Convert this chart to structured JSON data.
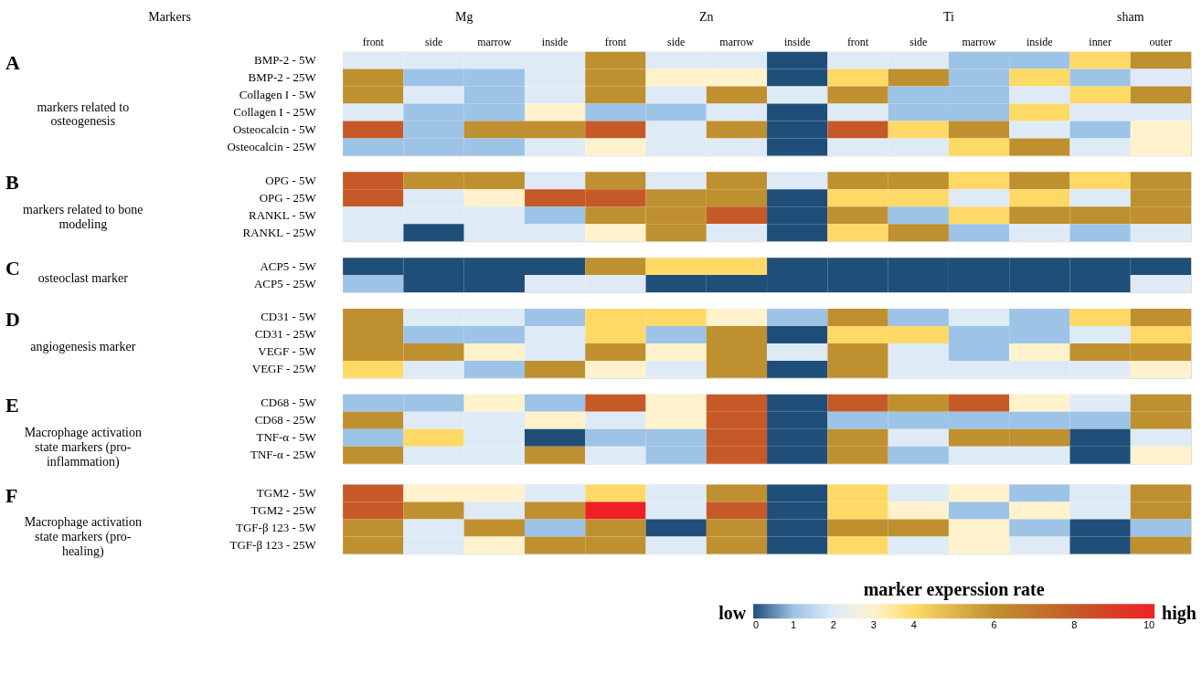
{
  "chart_data": {
    "type": "heatmap",
    "annotations": [
      "Markers",
      "Mg",
      "Zn",
      "Ti",
      "sham",
      "A",
      "markers related to osteogenesis",
      "B",
      "markers related to bone modeling",
      "C",
      "osteoclast marker",
      "D",
      "angiogenesis marker",
      "E",
      "Macrophage activation state markers (pro-inflammation)",
      "F",
      "Macrophage activation state markers (pro-healing)",
      "low",
      "high"
    ],
    "clabel": "marker experssion rate",
    "categories": [
      "front",
      "side",
      "marrow",
      "inside",
      "front",
      "side",
      "marrow",
      "inside",
      "front",
      "side",
      "marrow",
      "inside",
      "inner",
      "outer"
    ],
    "y_categories": [
      "BMP-2 - 5W",
      "BMP-2 - 25W",
      "Collagen I - 5W",
      "Collagen I - 25W",
      "Osteocalcin - 5W",
      "Osteocalcin - 25W",
      "OPG - 5W",
      "OPG - 25W",
      "RANKL - 5W",
      "RANKL - 25W",
      "ACP5 - 5W",
      "ACP5 - 25W",
      "CD31 - 5W",
      "CD31 - 25W",
      "VEGF - 5W",
      "VEGF - 25W",
      "CD68 - 5W",
      "CD68 - 25W",
      "TNF-α - 5W",
      "TNF-α - 25W",
      "TGM2 - 5W",
      "TGM2 - 25W",
      "TGF-β 123 - 5W",
      "TGF-β 123 - 25W"
    ],
    "cells": [
      [
        2,
        2,
        2,
        2,
        6,
        2,
        2,
        0,
        2,
        2,
        1,
        1,
        4,
        6
      ],
      [
        6,
        1,
        1,
        2,
        6,
        3,
        3,
        0,
        4,
        6,
        1,
        4,
        1,
        2
      ],
      [
        6,
        2,
        1,
        2,
        6,
        2,
        6,
        2,
        6,
        1,
        1,
        2,
        4,
        6
      ],
      [
        2,
        1,
        1,
        3,
        1,
        1,
        2,
        0,
        2,
        1,
        1,
        4,
        2,
        2
      ],
      [
        8,
        1,
        6,
        6,
        8,
        2,
        6,
        0,
        8,
        4,
        6,
        2,
        1,
        3
      ],
      [
        1,
        1,
        1,
        2,
        3,
        2,
        2,
        0,
        2,
        2,
        4,
        6,
        2,
        3
      ],
      [
        8,
        6,
        6,
        2,
        6,
        2,
        6,
        2,
        6,
        6,
        4,
        6,
        4,
        6
      ],
      [
        8,
        2,
        3,
        8,
        8,
        6,
        6,
        0,
        4,
        4,
        2,
        4,
        2,
        6
      ],
      [
        2,
        2,
        2,
        1,
        6,
        6,
        8,
        0,
        6,
        1,
        4,
        6,
        6,
        6
      ],
      [
        2,
        0,
        2,
        2,
        3,
        6,
        2,
        0,
        4,
        6,
        1,
        2,
        1,
        2
      ],
      [
        0,
        0,
        0,
        0,
        6,
        4,
        4,
        0,
        0,
        0,
        0,
        0,
        0,
        0
      ],
      [
        1,
        0,
        0,
        2,
        2,
        0,
        0,
        0,
        0,
        0,
        0,
        0,
        0,
        2
      ],
      [
        6,
        2,
        2,
        1,
        4,
        4,
        3,
        1,
        6,
        1,
        2,
        1,
        4,
        6
      ],
      [
        6,
        1,
        1,
        2,
        4,
        1,
        6,
        0,
        4,
        4,
        1,
        1,
        2,
        4
      ],
      [
        6,
        6,
        3,
        2,
        6,
        3,
        6,
        2,
        6,
        2,
        1,
        3,
        6,
        6
      ],
      [
        4,
        2,
        1,
        6,
        3,
        2,
        6,
        0,
        6,
        2,
        2,
        2,
        2,
        3
      ],
      [
        1,
        1,
        3,
        1,
        8,
        3,
        8,
        0,
        8,
        6,
        8,
        3,
        2,
        6
      ],
      [
        6,
        2,
        2,
        3,
        2,
        3,
        8,
        0,
        1,
        1,
        1,
        1,
        1,
        6
      ],
      [
        1,
        4,
        2,
        0,
        1,
        1,
        8,
        0,
        6,
        2,
        6,
        6,
        0,
        2
      ],
      [
        6,
        2,
        2,
        6,
        2,
        1,
        8,
        0,
        6,
        1,
        2,
        2,
        0,
        3
      ],
      [
        8,
        3,
        3,
        2,
        4,
        2,
        6,
        0,
        4,
        2,
        3,
        1,
        2,
        6
      ],
      [
        8,
        6,
        2,
        6,
        10,
        2,
        8,
        0,
        4,
        3,
        1,
        3,
        2,
        6
      ],
      [
        6,
        2,
        6,
        1,
        6,
        0,
        6,
        0,
        6,
        6,
        3,
        1,
        0,
        1
      ],
      [
        6,
        2,
        3,
        6,
        6,
        2,
        6,
        0,
        4,
        2,
        3,
        2,
        0,
        6
      ]
    ],
    "cticks": [
      0,
      1,
      2,
      3,
      4,
      6,
      8,
      10
    ],
    "colors": [
      "#1f4e79",
      "#9dc3e6",
      "#deebf7",
      "#fff2cc",
      "#ffd966",
      "#bf9030",
      "#c55a28",
      "#ee2024"
    ]
  }
}
